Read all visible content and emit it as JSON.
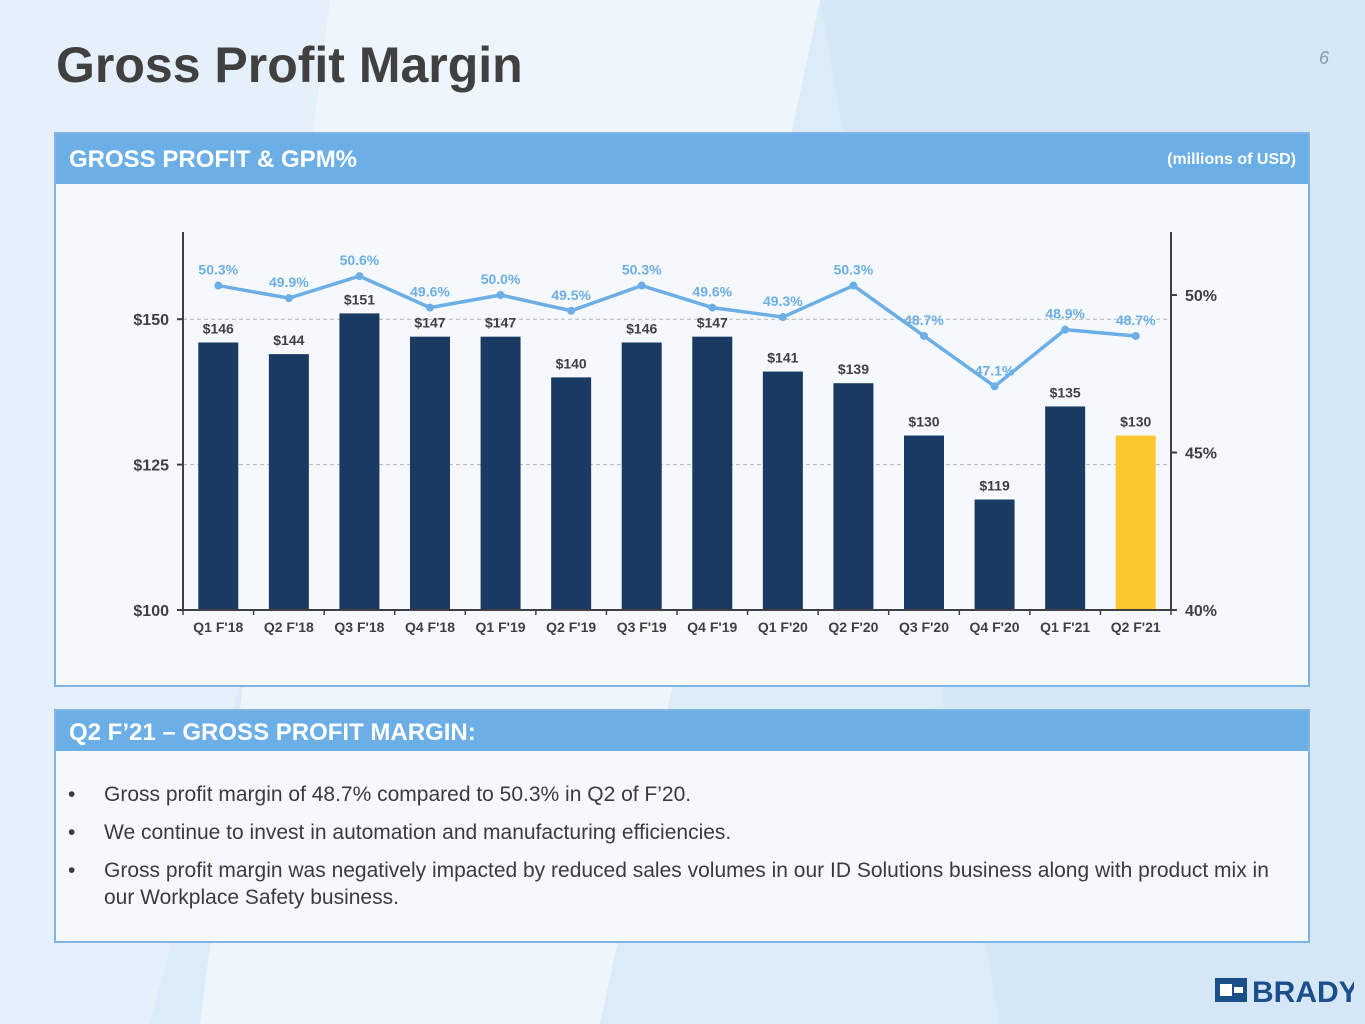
{
  "slide": {
    "title": "Gross Profit Margin",
    "page_number": "6",
    "logo_text": "BRADY"
  },
  "chart_panel": {
    "heading": "GROSS PROFIT & GPM%",
    "units": "(millions of USD)"
  },
  "notes_panel": {
    "heading": "Q2 F’21 – GROSS PROFIT MARGIN:",
    "bullet_char": "•",
    "bullets": [
      "Gross profit margin of 48.7% compared to 50.3% in Q2 of F’20.",
      "We continue to invest in automation and manufacturing efficiencies.",
      "Gross profit margin was negatively impacted by reduced sales volumes in our ID Solutions business along with product mix in our Workplace Safety business."
    ]
  },
  "colors": {
    "bar": "#1b3a63",
    "bar_highlight": "#fdc72f",
    "line": "#6caee6",
    "axis": "#404040",
    "label": "#404040"
  },
  "chart_data": {
    "type": "bar",
    "title": "GROSS PROFIT & GPM%",
    "categories": [
      "Q1 F'18",
      "Q2 F'18",
      "Q3 F'18",
      "Q4 F'18",
      "Q1 F'19",
      "Q2 F'19",
      "Q3 F'19",
      "Q4 F'19",
      "Q1 F'20",
      "Q2 F'20",
      "Q3 F'20",
      "Q4 F'20",
      "Q1 F'21",
      "Q2 F'21"
    ],
    "series": [
      {
        "name": "Gross Profit",
        "type": "bar",
        "axis": "left",
        "values": [
          146,
          144,
          151,
          147,
          147,
          140,
          146,
          147,
          141,
          139,
          130,
          119,
          135,
          130
        ],
        "labels": [
          "$146",
          "$144",
          "$151",
          "$147",
          "$147",
          "$140",
          "$146",
          "$147",
          "$141",
          "$139",
          "$130",
          "$119",
          "$135",
          "$130"
        ],
        "highlight_index": 13
      },
      {
        "name": "GPM%",
        "type": "line",
        "axis": "right",
        "values": [
          50.3,
          49.9,
          50.6,
          49.6,
          50.0,
          49.5,
          50.3,
          49.6,
          49.3,
          50.3,
          48.7,
          47.1,
          48.9,
          48.7
        ],
        "labels": [
          "50.3%",
          "49.9%",
          "50.6%",
          "49.6%",
          "50.0%",
          "49.5%",
          "50.3%",
          "49.6%",
          "49.3%",
          "50.3%",
          "48.7%",
          "47.1%",
          "48.9%",
          "48.7%"
        ]
      }
    ],
    "y_left": {
      "min": 100,
      "max": 165,
      "ticks": [
        100,
        125,
        150
      ],
      "tick_labels": [
        "$100",
        "$125",
        "$150"
      ]
    },
    "y_right": {
      "min": 40,
      "max": 52,
      "ticks": [
        40,
        45,
        50
      ],
      "tick_labels": [
        "40%",
        "45%",
        "50%"
      ]
    },
    "gridlines": [
      125,
      150
    ],
    "legend": "none"
  }
}
